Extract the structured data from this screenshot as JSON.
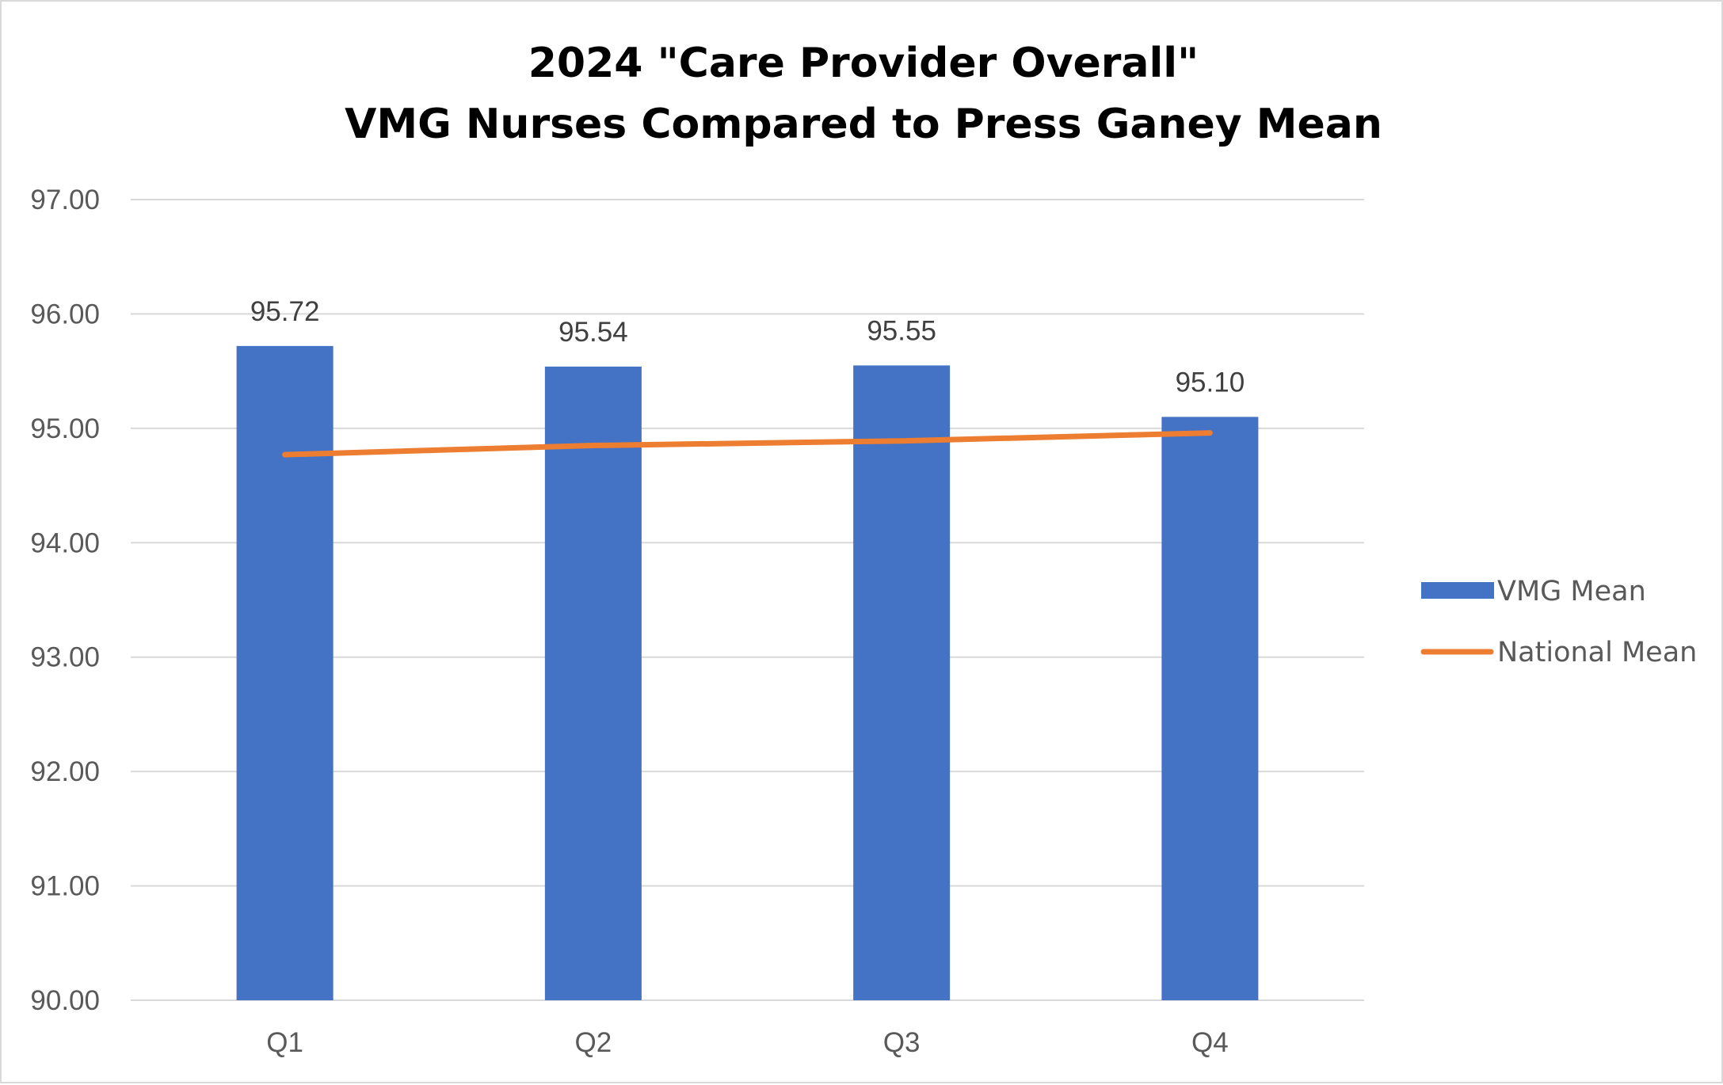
{
  "chart_data": {
    "type": "bar",
    "title": "2024 \"Care Provider Overall\"",
    "subtitle": "VMG Nurses Compared to Press Ganey Mean",
    "xlabel": "",
    "ylabel": "",
    "categories": [
      "Q1",
      "Q2",
      "Q3",
      "Q4"
    ],
    "ylim": [
      90,
      97
    ],
    "yticks": [
      "90.00",
      "91.00",
      "92.00",
      "93.00",
      "94.00",
      "95.00",
      "96.00",
      "97.00"
    ],
    "grid": true,
    "legend_position": "right",
    "series": [
      {
        "name": "VMG Mean",
        "type": "bar",
        "color": "#4472C4",
        "values": [
          95.72,
          95.54,
          95.55,
          95.1
        ],
        "labels": [
          "95.72",
          "95.54",
          "95.55",
          "95.10"
        ]
      },
      {
        "name": "National Mean",
        "type": "line",
        "color": "#ED7D31",
        "values": [
          94.77,
          94.85,
          94.89,
          94.96
        ]
      }
    ]
  }
}
